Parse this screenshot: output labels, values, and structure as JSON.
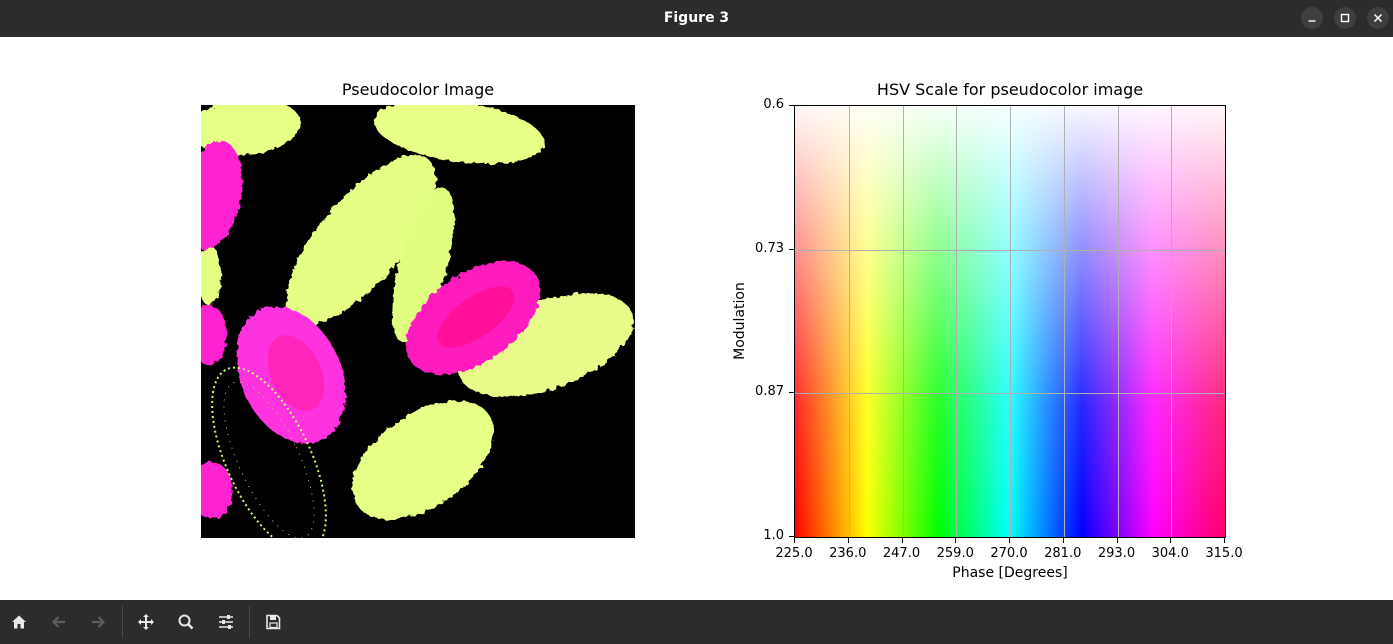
{
  "window": {
    "title": "Figure 3",
    "controls": [
      "minimize-icon",
      "maximize-icon",
      "close-icon"
    ]
  },
  "toolbar": {
    "items": [
      "home-icon",
      "back-arrow-icon",
      "forward-arrow-icon",
      "pan-icon",
      "zoom-icon",
      "configure-subplots-icon",
      "save-icon"
    ],
    "disabled": [
      "back-arrow-icon",
      "forward-arrow-icon"
    ]
  },
  "image_panel": {
    "title": "Pseudocolor Image",
    "colors": {
      "background": "#000000",
      "yellow_green": "#e8ff80",
      "magenta": "#ff1fcf",
      "violet": "#ff40ff"
    }
  },
  "chart_data": {
    "type": "heatmap",
    "title": "HSV Scale for pseudocolor image",
    "xlabel": "Phase [Degrees]",
    "ylabel": "Modulation",
    "x_ticks": [
      "225.0",
      "236.0",
      "247.0",
      "259.0",
      "270.0",
      "281.0",
      "293.0",
      "304.0",
      "315.0"
    ],
    "y_ticks": [
      "0.6",
      "0.73",
      "0.87",
      "1.0"
    ],
    "xlim": [
      225.0,
      315.0
    ],
    "ylim": [
      0.6,
      1.0
    ],
    "y_inverted": true,
    "grid": true,
    "hue_stops": [
      "#ff0000",
      "#ffff00",
      "#00ff00",
      "#00ffff",
      "#0000ff",
      "#ff00ff",
      "#ff0066"
    ]
  }
}
